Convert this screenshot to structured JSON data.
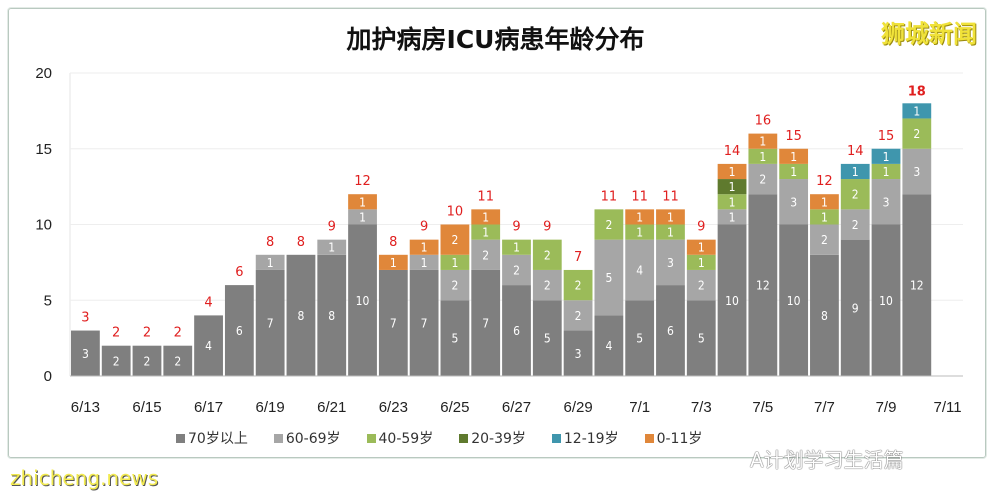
{
  "title": "加护病房ICU病患年龄分布",
  "brand": "狮城新闻",
  "watermarks": {
    "site": "zhicheng.news",
    "account": "A计划学习生活篇"
  },
  "chart_data": {
    "type": "bar",
    "stacked": true,
    "title": "加护病房ICU病患年龄分布",
    "categories": [
      "6/13",
      "6/14",
      "6/15",
      "6/16",
      "6/17",
      "6/18",
      "6/19",
      "6/20",
      "6/21",
      "6/22",
      "6/23",
      "6/24",
      "6/25",
      "6/26",
      "6/27",
      "6/28",
      "6/29",
      "6/30",
      "7/1",
      "7/2",
      "7/3",
      "7/4",
      "7/5",
      "7/6",
      "7/7",
      "7/8",
      "7/9",
      "7/10",
      "7/11"
    ],
    "xtick_labels": [
      "6/13",
      "6/15",
      "6/17",
      "6/19",
      "6/21",
      "6/23",
      "6/25",
      "6/27",
      "6/29",
      "7/1",
      "7/3",
      "7/5",
      "7/7",
      "7/9",
      "7/11"
    ],
    "yticks": [
      0,
      5,
      10,
      15,
      20
    ],
    "ylim": [
      0,
      20
    ],
    "grid": true,
    "legend_position": "bottom",
    "series": [
      {
        "name": "70岁以上",
        "color": "#7f7f7f",
        "values": [
          3,
          2,
          2,
          2,
          4,
          6,
          7,
          8,
          8,
          10,
          7,
          7,
          5,
          7,
          6,
          5,
          3,
          4,
          5,
          6,
          5,
          10,
          12,
          10,
          8,
          9,
          10,
          12,
          0
        ]
      },
      {
        "name": "60-69岁",
        "color": "#a6a6a6",
        "values": [
          0,
          0,
          0,
          0,
          0,
          0,
          1,
          0,
          1,
          1,
          0,
          1,
          2,
          2,
          2,
          2,
          2,
          5,
          4,
          3,
          2,
          1,
          2,
          3,
          2,
          2,
          3,
          3,
          0
        ]
      },
      {
        "name": "40-59岁",
        "color": "#9bbb59",
        "values": [
          0,
          0,
          0,
          0,
          0,
          0,
          0,
          0,
          0,
          0,
          0,
          0,
          1,
          1,
          1,
          2,
          2,
          2,
          1,
          1,
          1,
          1,
          1,
          1,
          1,
          2,
          1,
          2,
          0
        ]
      },
      {
        "name": "20-39岁",
        "color": "#5f7a2e",
        "values": [
          0,
          0,
          0,
          0,
          0,
          0,
          0,
          0,
          0,
          0,
          0,
          0,
          0,
          0,
          0,
          0,
          0,
          0,
          0,
          0,
          0,
          1,
          0,
          0,
          0,
          0,
          0,
          0,
          0
        ]
      },
      {
        "name": "12-19岁",
        "color": "#3f96ad",
        "values": [
          0,
          0,
          0,
          0,
          0,
          0,
          0,
          0,
          0,
          0,
          0,
          0,
          0,
          0,
          0,
          0,
          0,
          0,
          0,
          0,
          0,
          0,
          0,
          0,
          0,
          1,
          1,
          1,
          0
        ]
      },
      {
        "name": "0-11岁",
        "color": "#e0873a",
        "values": [
          0,
          0,
          0,
          0,
          0,
          0,
          0,
          0,
          0,
          1,
          1,
          1,
          2,
          1,
          0,
          0,
          0,
          0,
          1,
          1,
          1,
          1,
          1,
          1,
          1,
          0,
          0,
          0,
          0
        ]
      }
    ],
    "totals": [
      3,
      2,
      2,
      2,
      4,
      6,
      8,
      8,
      9,
      12,
      8,
      9,
      10,
      11,
      9,
      9,
      7,
      11,
      11,
      11,
      9,
      14,
      16,
      15,
      12,
      14,
      15,
      18,
      null
    ],
    "total_label_color": "#e01f1f"
  }
}
